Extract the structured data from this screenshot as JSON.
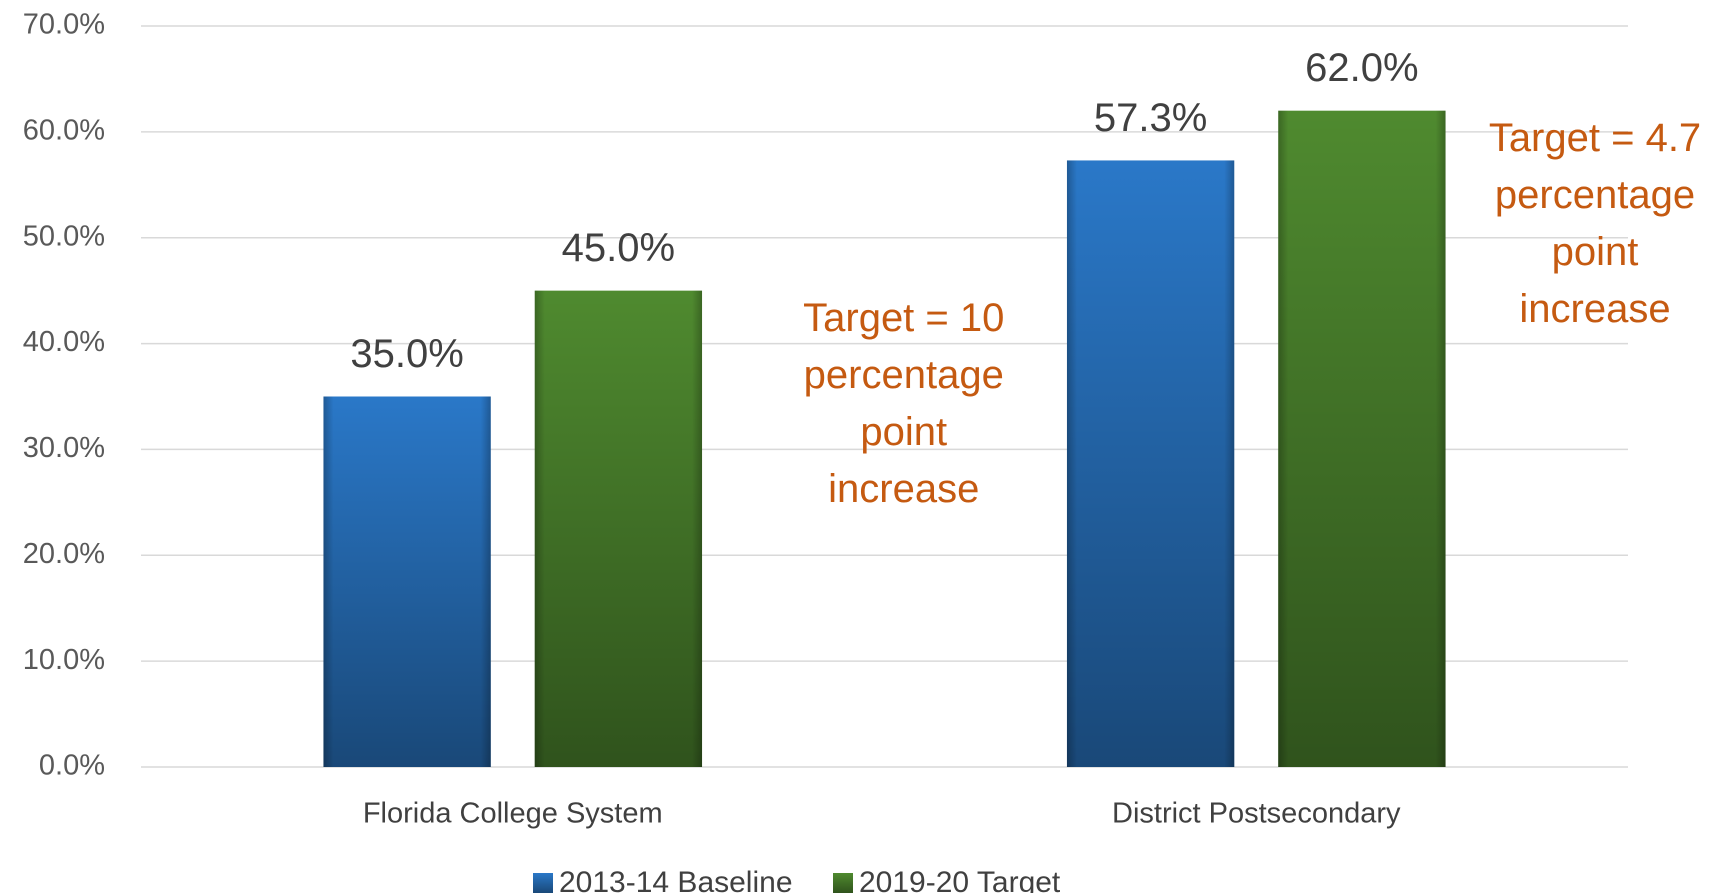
{
  "chart_data": {
    "type": "bar",
    "categories": [
      "Florida College System",
      "District Postsecondary"
    ],
    "series": [
      {
        "name": "2013-14 Baseline",
        "color": "#2a78c8",
        "values": [
          35.0,
          57.3
        ],
        "value_labels": [
          "35.0%",
          "57.3%"
        ]
      },
      {
        "name": "2019-20 Target",
        "color": "#4f8a2f",
        "values": [
          45.0,
          62.0
        ],
        "value_labels": [
          "45.0%",
          "62.0%"
        ]
      }
    ],
    "ylim": [
      0,
      70
    ],
    "yticks": [
      {
        "value": 0,
        "label": "0.0%"
      },
      {
        "value": 10,
        "label": "10.0%"
      },
      {
        "value": 20,
        "label": "20.0%"
      },
      {
        "value": 30,
        "label": "30.0%"
      },
      {
        "value": 40,
        "label": "40.0%"
      },
      {
        "value": 50,
        "label": "50.0%"
      },
      {
        "value": 60,
        "label": "60.0%"
      },
      {
        "value": 70,
        "label": "70.0%"
      }
    ],
    "grid": true,
    "legend": "bottom",
    "annotations": [
      {
        "lines": [
          "Target = 10",
          "percentage",
          "point",
          "increase"
        ],
        "color": "#c55a11"
      },
      {
        "lines": [
          "Target = 4.7",
          "percentage",
          "point",
          "increase"
        ],
        "color": "#c55a11"
      }
    ]
  }
}
